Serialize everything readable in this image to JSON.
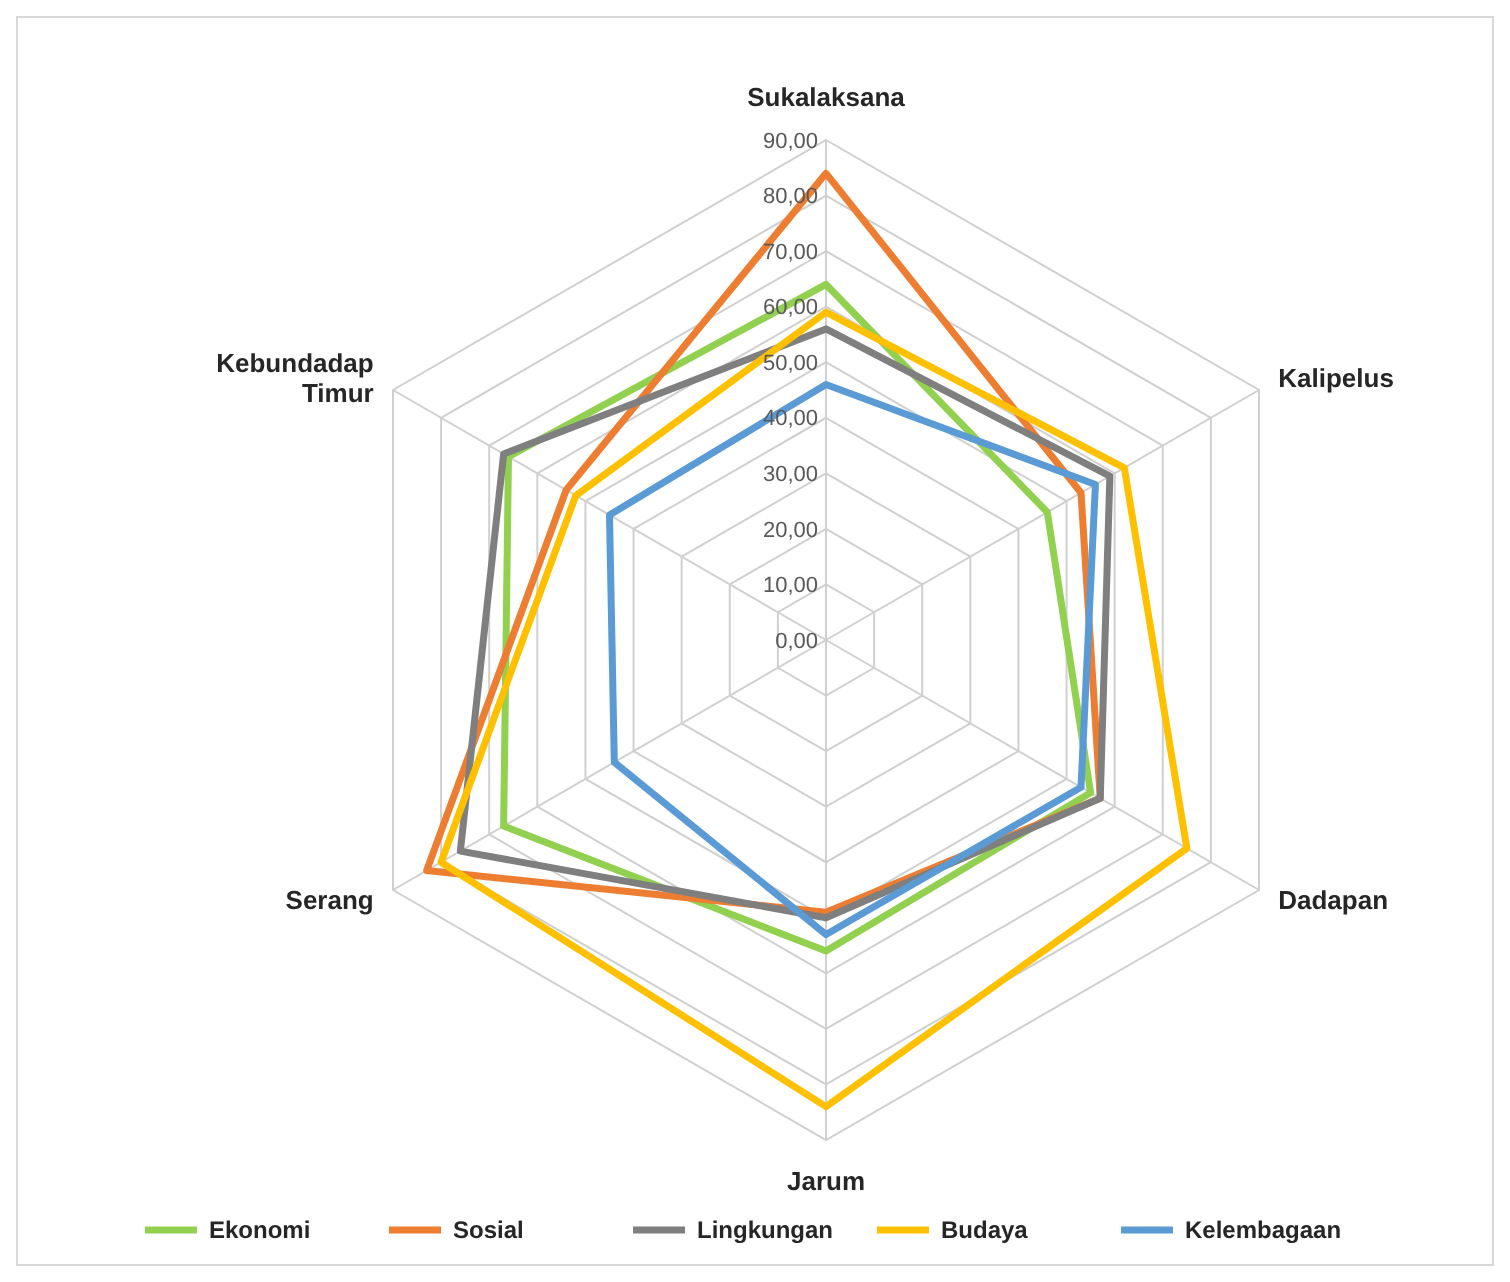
{
  "chart_data": {
    "type": "radar",
    "categories": [
      "Sukalaksana",
      "Kalipelus",
      "Dadapan",
      "Jarum",
      "Serang",
      "Kebundadap Timur"
    ],
    "ylim": [
      0,
      90
    ],
    "yticks": [
      {
        "value": 0,
        "label": "0,00"
      },
      {
        "value": 10,
        "label": "10,00"
      },
      {
        "value": 20,
        "label": "20,00"
      },
      {
        "value": 30,
        "label": "30,00"
      },
      {
        "value": 40,
        "label": "40,00"
      },
      {
        "value": 50,
        "label": "50,00"
      },
      {
        "value": 60,
        "label": "60,00"
      },
      {
        "value": 70,
        "label": "70,00"
      },
      {
        "value": 80,
        "label": "80,00"
      },
      {
        "value": 90,
        "label": "90,00"
      }
    ],
    "grid": true,
    "legend": "bottom",
    "marker": "none",
    "series": [
      {
        "name": "Ekonomi",
        "color": "#92d050",
        "values": [
          64,
          46,
          55,
          56,
          67,
          66
        ]
      },
      {
        "name": "Sosial",
        "color": "#ed7d31",
        "values": [
          84,
          53,
          57,
          49,
          83,
          54
        ]
      },
      {
        "name": "Lingkungan",
        "color": "#7f7f7f",
        "values": [
          56,
          59,
          57,
          50,
          76,
          67
        ]
      },
      {
        "name": "Budaya",
        "color": "#ffc000",
        "values": [
          59,
          62,
          75,
          84,
          80,
          52
        ]
      },
      {
        "name": "Kelembagaan",
        "color": "#5b9bd5",
        "values": [
          46,
          56,
          53,
          53,
          44,
          45
        ]
      }
    ]
  }
}
